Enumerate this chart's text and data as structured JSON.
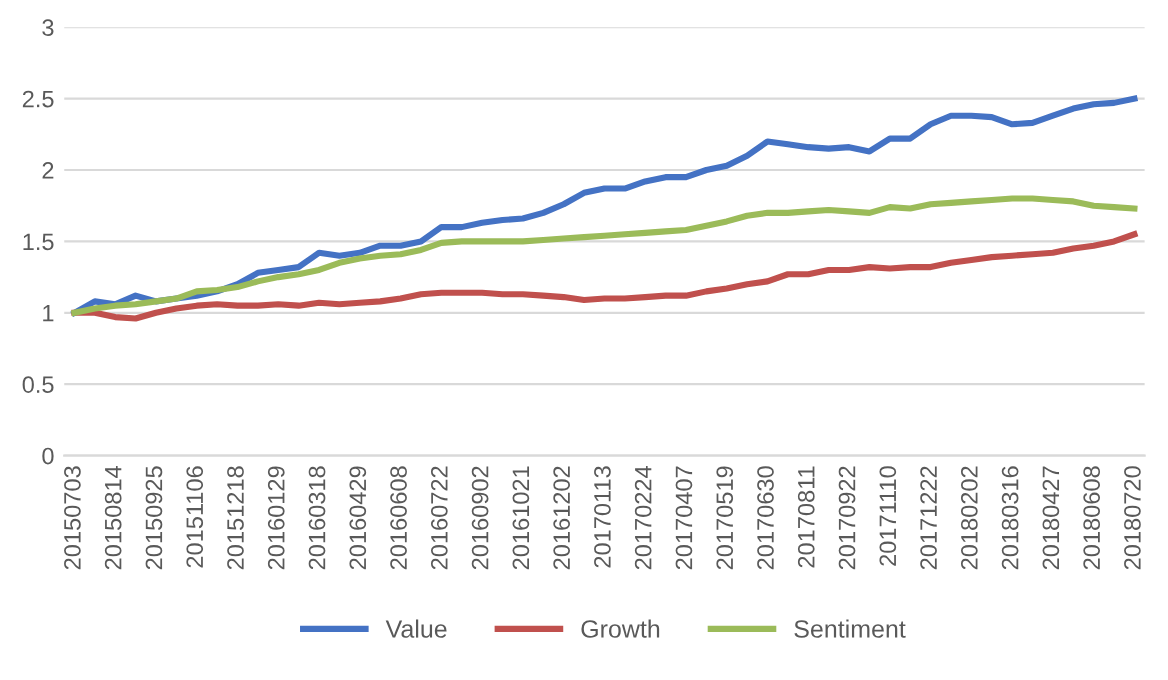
{
  "chart_data": {
    "type": "line",
    "categories": [
      "20150703",
      null,
      "20150814",
      null,
      "20150925",
      null,
      "20151106",
      null,
      "20151218",
      null,
      "20160129",
      null,
      "20160318",
      null,
      "20160429",
      null,
      "20160608",
      null,
      "20160722",
      null,
      "20160902",
      null,
      "20161021",
      null,
      "20161202",
      null,
      "20170113",
      null,
      "20170224",
      null,
      "20170407",
      null,
      "20170519",
      null,
      "20170630",
      null,
      "20170811",
      null,
      "20170922",
      null,
      "20171110",
      null,
      "20171222",
      null,
      "20180202",
      null,
      "20180316",
      null,
      "20180427",
      null,
      "20180608",
      null,
      "20180720"
    ],
    "series": [
      {
        "name": "Value",
        "color": "#4472c4",
        "values": [
          1.0,
          1.08,
          1.06,
          1.12,
          1.08,
          1.1,
          1.12,
          1.15,
          1.2,
          1.28,
          1.3,
          1.32,
          1.42,
          1.4,
          1.42,
          1.47,
          1.47,
          1.5,
          1.6,
          1.6,
          1.63,
          1.65,
          1.66,
          1.7,
          1.76,
          1.84,
          1.87,
          1.87,
          1.92,
          1.95,
          1.95,
          2.0,
          2.03,
          2.1,
          2.2,
          2.18,
          2.16,
          2.15,
          2.16,
          2.13,
          2.22,
          2.22,
          2.32,
          2.38,
          2.38,
          2.37,
          2.32,
          2.33,
          2.38,
          2.43,
          2.46,
          2.47,
          2.5
        ]
      },
      {
        "name": "Growth",
        "color": "#c0504d",
        "values": [
          1.0,
          1.0,
          0.97,
          0.96,
          1.0,
          1.03,
          1.05,
          1.06,
          1.05,
          1.05,
          1.06,
          1.05,
          1.07,
          1.06,
          1.07,
          1.08,
          1.1,
          1.13,
          1.14,
          1.14,
          1.14,
          1.13,
          1.13,
          1.12,
          1.11,
          1.09,
          1.1,
          1.1,
          1.11,
          1.12,
          1.12,
          1.15,
          1.17,
          1.2,
          1.22,
          1.27,
          1.27,
          1.3,
          1.3,
          1.32,
          1.31,
          1.32,
          1.32,
          1.35,
          1.37,
          1.39,
          1.4,
          1.41,
          1.42,
          1.45,
          1.47,
          1.5,
          1.55
        ]
      },
      {
        "name": "Sentiment",
        "color": "#9bbb59",
        "values": [
          1.0,
          1.03,
          1.05,
          1.06,
          1.08,
          1.1,
          1.15,
          1.16,
          1.18,
          1.22,
          1.25,
          1.27,
          1.3,
          1.35,
          1.38,
          1.4,
          1.41,
          1.44,
          1.49,
          1.5,
          1.5,
          1.5,
          1.5,
          1.51,
          1.52,
          1.53,
          1.54,
          1.55,
          1.56,
          1.57,
          1.58,
          1.61,
          1.64,
          1.68,
          1.7,
          1.7,
          1.71,
          1.72,
          1.71,
          1.7,
          1.74,
          1.73,
          1.76,
          1.77,
          1.78,
          1.79,
          1.8,
          1.8,
          1.79,
          1.78,
          1.75,
          1.74,
          1.73
        ]
      }
    ],
    "ylim": [
      0,
      3
    ],
    "yticks": [
      0,
      0.5,
      1,
      1.5,
      2,
      2.5,
      3
    ],
    "grid": "y",
    "legend": "bottom",
    "marker": "none",
    "line_style": "solid"
  }
}
